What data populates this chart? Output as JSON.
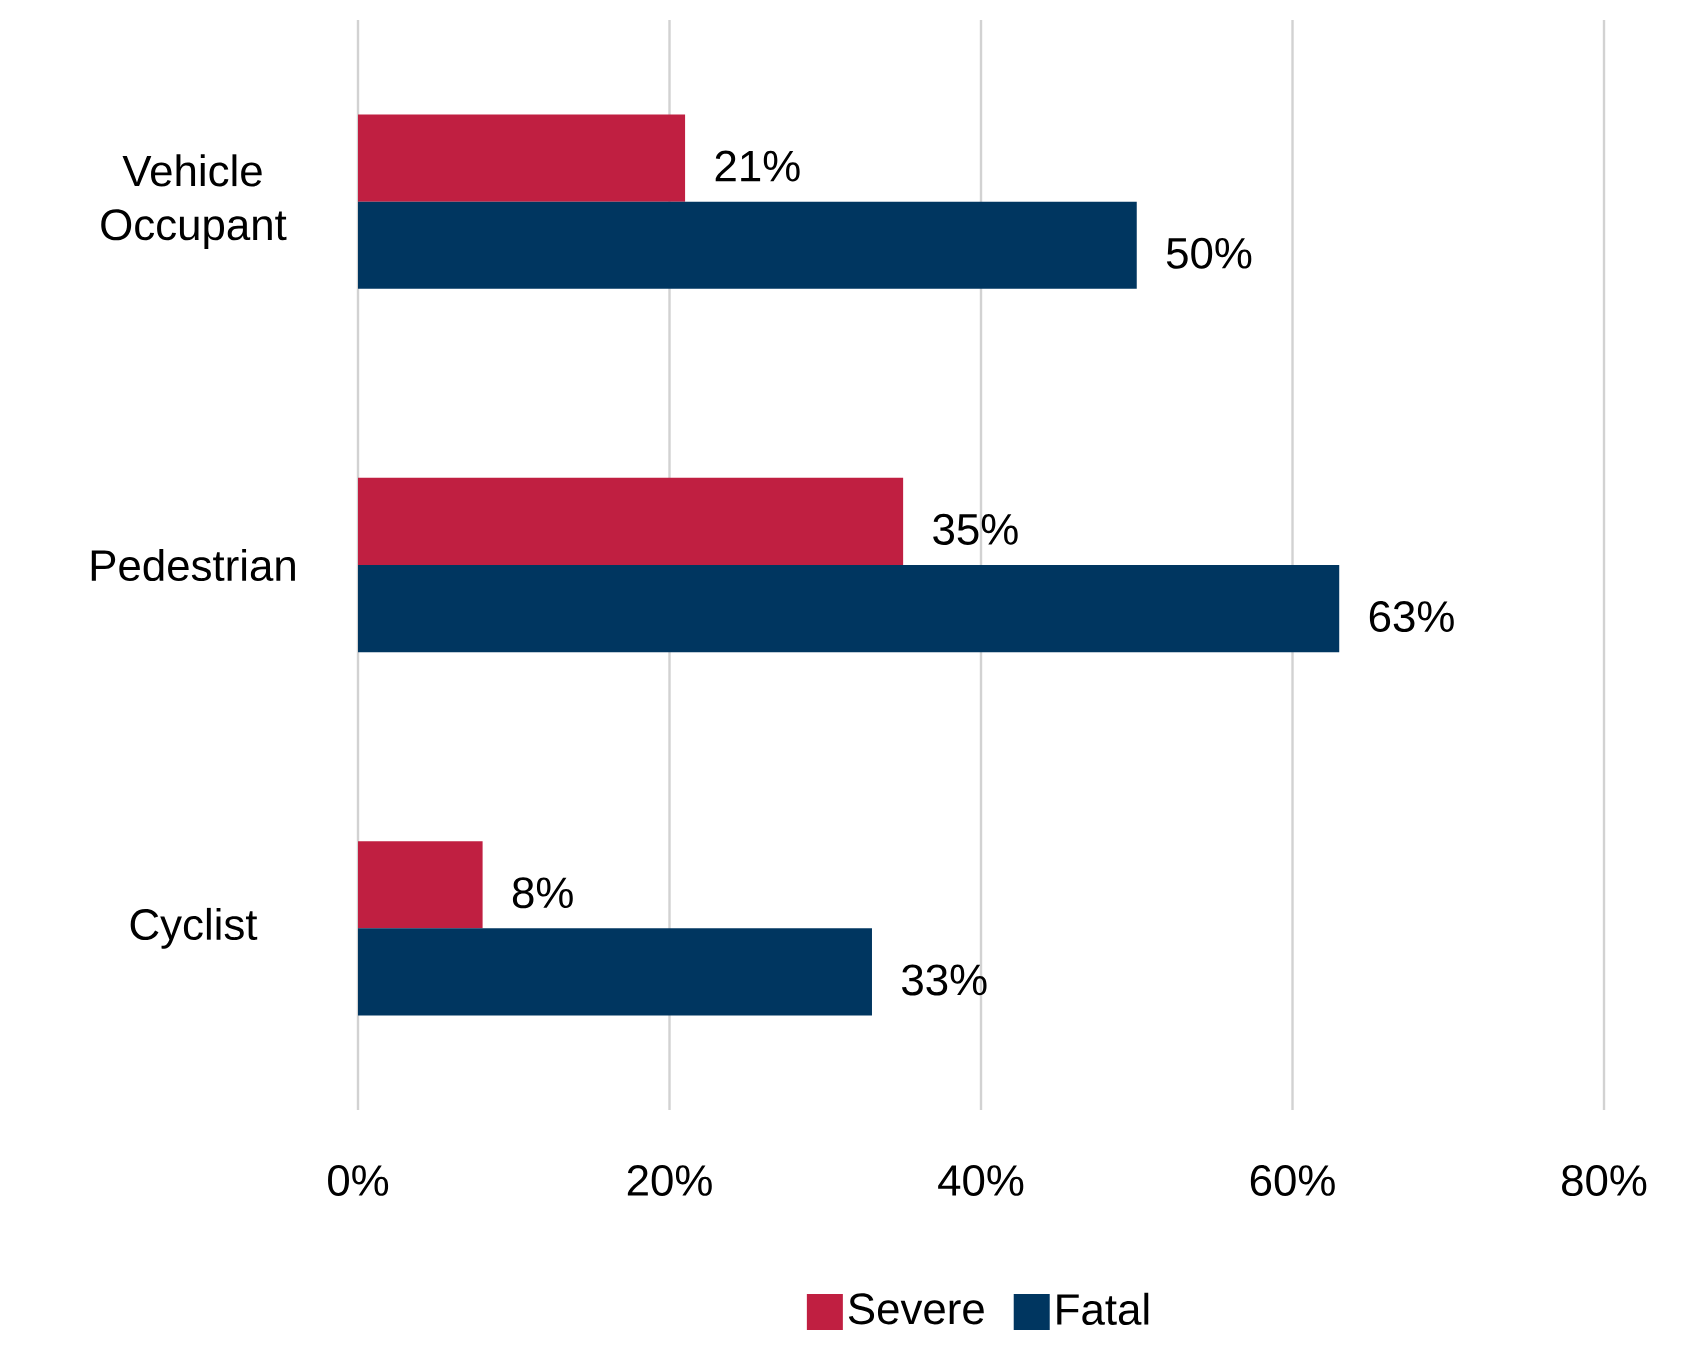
{
  "chart_data": {
    "type": "bar",
    "orientation": "horizontal",
    "categories": [
      "Vehicle Occupant",
      "Pedestrian",
      "Cyclist"
    ],
    "series": [
      {
        "name": "Severe",
        "color": "#c01f41",
        "values": [
          21,
          35,
          8
        ],
        "value_labels": [
          "21%",
          "35%",
          "8%"
        ]
      },
      {
        "name": "Fatal",
        "color": "#003660",
        "values": [
          50,
          63,
          33
        ],
        "value_labels": [
          "50%",
          "63%",
          "33%"
        ]
      }
    ],
    "xlim": [
      0,
      80
    ],
    "xticks": [
      {
        "value": 0,
        "label": "0%"
      },
      {
        "value": 20,
        "label": "20%"
      },
      {
        "value": 40,
        "label": "40%"
      },
      {
        "value": 60,
        "label": "60%"
      },
      {
        "value": 80,
        "label": "80%"
      }
    ],
    "grid": "x",
    "legend": "bottom"
  }
}
